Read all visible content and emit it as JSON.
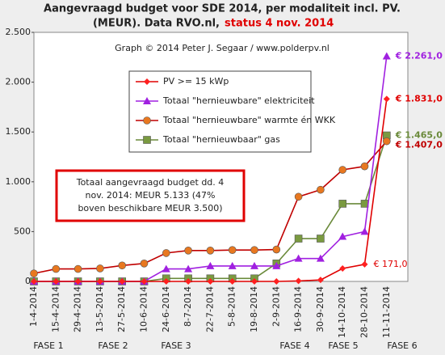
{
  "chart_data": {
    "type": "line",
    "title_line1": "Aangevraagd budget voor SDE 2014, per modaliteit incl. PV.",
    "title_line2": "(MEUR). Data RVO.nl,",
    "title_status": "status 4 nov. 2014",
    "subtitle": "Graph © 2014 Peter J. Segaar / www.polderpv.nl",
    "note": [
      "Totaal aangevraagd budget dd. 4",
      "nov. 2014: MEUR 5.133 (47%",
      "boven beschikbare MEUR 3.500)"
    ],
    "phases": [
      "FASE 1",
      "FASE 2",
      "FASE 3",
      "FASE 4",
      "FASE 5",
      "FASE 6"
    ],
    "categories": [
      "1-4-2014",
      "15-4-2014",
      "29-4-2014",
      "13-5-2014",
      "27-5-2014",
      "10-6-2014",
      "24-6-2014",
      "8-7-2014",
      "22-7-2014",
      "5-8-2014",
      "19-8-2014",
      "2-9-2014",
      "16-9-2014",
      "30-9-2014",
      "14-10-2014",
      "28-10-2014",
      "11-11-2014"
    ],
    "ylim": [
      0,
      2500
    ],
    "yticks": [
      0,
      500,
      {
        "value": 1000,
        "label": "1.000"
      },
      {
        "value": 1500,
        "label": "1.500"
      },
      {
        "value": 2000,
        "label": "2.000"
      },
      {
        "value": 2500,
        "label": "2.500"
      }
    ],
    "grid": false,
    "series": [
      {
        "name": "PV >= 15 kWp",
        "color": "#e00000",
        "marker_color": "#ff2020",
        "marker": "diamond",
        "values": [
          0,
          0,
          0,
          0,
          0,
          0,
          0,
          0,
          0,
          0,
          0,
          0,
          5,
          15,
          130,
          171,
          1831
        ],
        "value_labels": [
          null,
          null,
          null,
          null,
          null,
          null,
          null,
          null,
          null,
          null,
          null,
          null,
          null,
          null,
          null,
          "€ 171,0",
          "€ 1.831,0"
        ]
      },
      {
        "name": "Totaal \"hernieuwbare\" elektriciteit",
        "color": "#a020e0",
        "marker_color": "#a020e0",
        "marker": "triangle",
        "values": [
          0,
          0,
          0,
          0,
          0,
          0,
          125,
          125,
          155,
          155,
          155,
          155,
          230,
          230,
          450,
          500,
          2261
        ],
        "value_labels": [
          null,
          null,
          null,
          null,
          null,
          null,
          null,
          null,
          null,
          null,
          null,
          null,
          null,
          null,
          null,
          null,
          "€ 2.261,0"
        ]
      },
      {
        "name": "Totaal \"hernieuwbare\" warmte én WKK",
        "color": "#c00000",
        "marker_color": "#e87820",
        "marker": "circle",
        "values": [
          80,
          125,
          125,
          130,
          160,
          180,
          285,
          310,
          310,
          315,
          315,
          320,
          850,
          920,
          1120,
          1155,
          1407
        ],
        "value_labels": [
          null,
          null,
          null,
          null,
          null,
          null,
          null,
          null,
          null,
          null,
          null,
          null,
          null,
          null,
          null,
          null,
          "€ 1.407,0"
        ]
      },
      {
        "name": "Totaal \"hernieuwbaar\" gas",
        "color": "#6a8a3a",
        "marker_color": "#7a9a40",
        "marker": "square",
        "values": [
          0,
          0,
          0,
          0,
          0,
          0,
          30,
          30,
          30,
          30,
          30,
          180,
          430,
          430,
          780,
          780,
          1465
        ],
        "value_labels": [
          null,
          null,
          null,
          null,
          null,
          null,
          null,
          null,
          null,
          null,
          null,
          null,
          null,
          null,
          null,
          null,
          "€ 1.465,0"
        ]
      }
    ]
  }
}
